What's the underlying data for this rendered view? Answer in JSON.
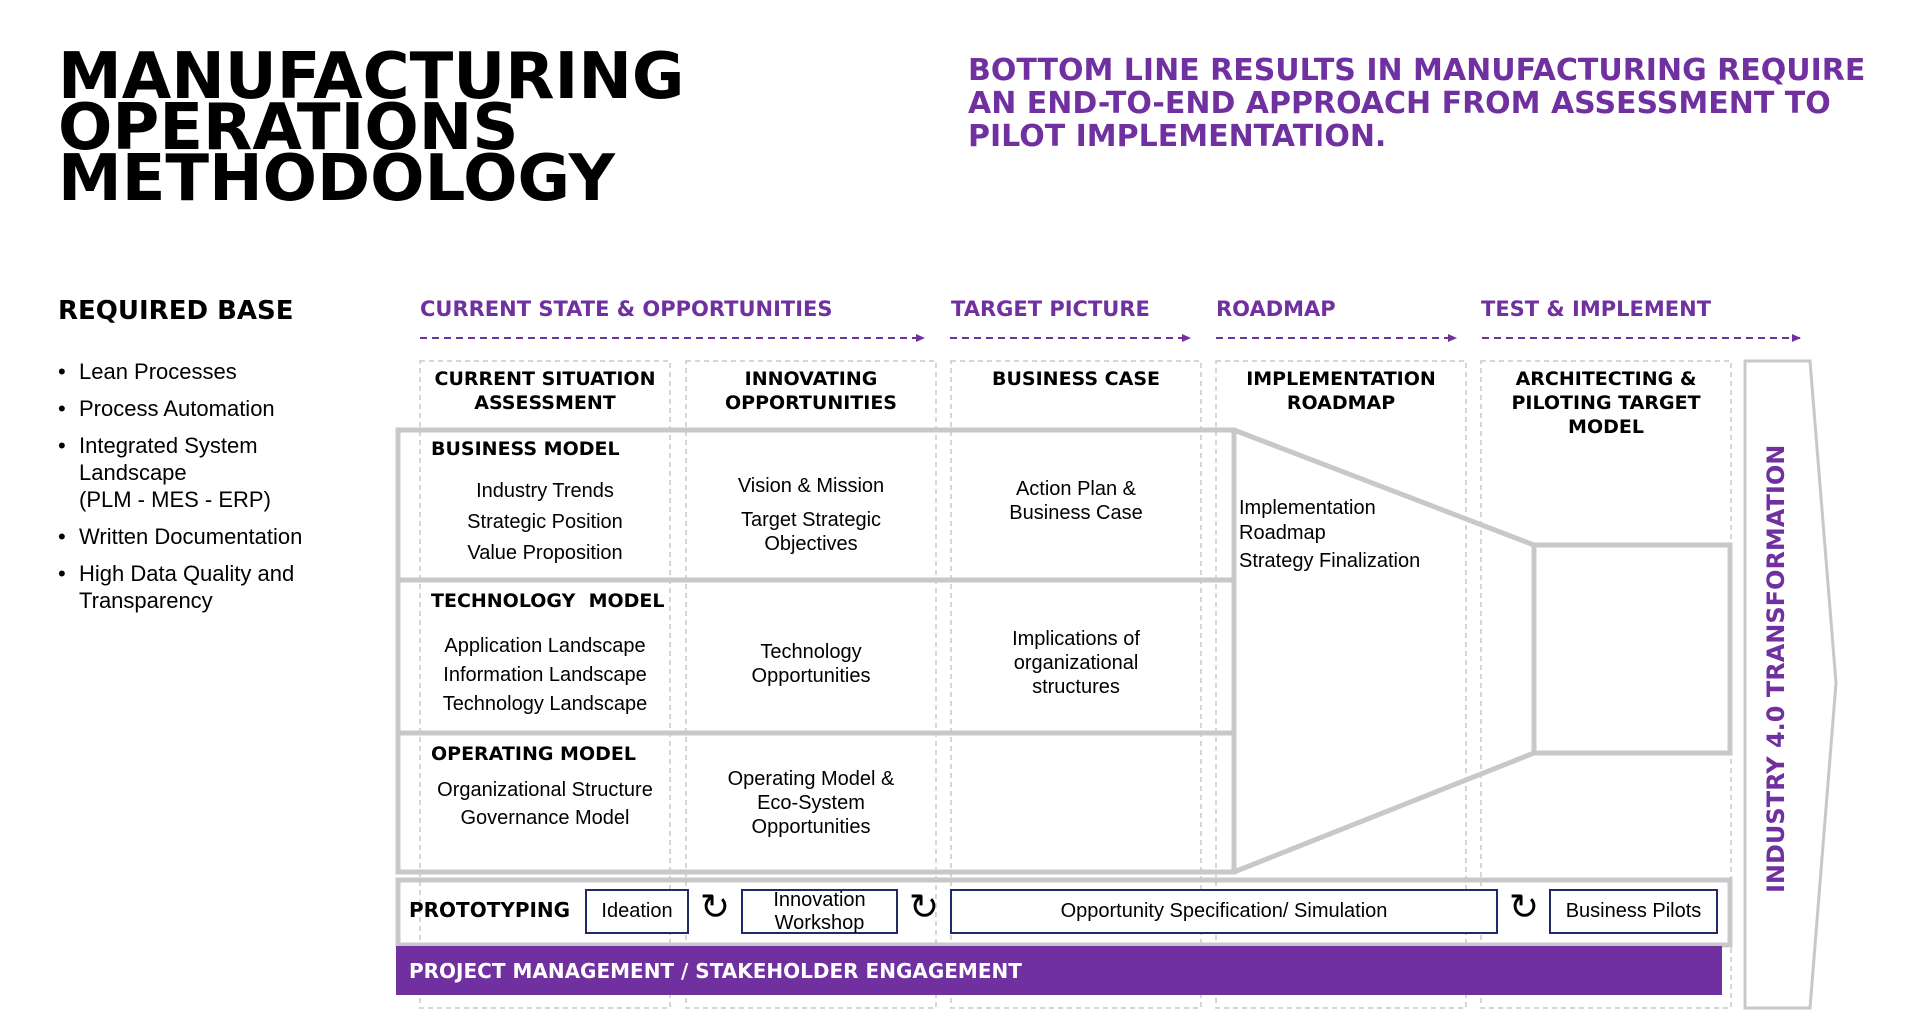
{
  "header": {
    "title_lines": [
      "MANUFACTURING",
      "OPERATIONS",
      "METHODOLOGY"
    ],
    "subtitle_lines": [
      "BOTTOM LINE RESULTS IN MANUFACTURING REQUIRE",
      "AN END-TO-END APPROACH FROM ASSESSMENT TO",
      "PILOT IMPLEMENTATION."
    ]
  },
  "required_base": {
    "title": "REQUIRED BASE",
    "items": [
      {
        "lines": [
          "Lean Processes"
        ]
      },
      {
        "lines": [
          "Process Automation"
        ]
      },
      {
        "lines": [
          "Integrated System",
          "Landscape",
          "(PLM - MES - ERP)"
        ]
      },
      {
        "lines": [
          "Written Documentation"
        ]
      },
      {
        "lines": [
          "High Data Quality and",
          "Transparency"
        ]
      }
    ]
  },
  "phases": [
    "CURRENT STATE & OPPORTUNITIES",
    "TARGET PICTURE",
    "ROADMAP",
    "TEST & IMPLEMENT"
  ],
  "columns": [
    {
      "lines": [
        "CURRENT SITUATION",
        "ASSESSMENT"
      ]
    },
    {
      "lines": [
        "INNOVATING",
        "OPPORTUNITIES"
      ]
    },
    {
      "lines": [
        "BUSINESS CASE"
      ]
    },
    {
      "lines": [
        "IMPLEMENTATION",
        "ROADMAP"
      ]
    },
    {
      "lines": [
        "ARCHITECTING &",
        "PILOTING TARGET",
        "MODEL"
      ]
    }
  ],
  "rows": [
    {
      "label": "BUSINESS MODEL",
      "assessment": [
        "Industry Trends",
        "Strategic Position",
        "Value Proposition"
      ],
      "opportunities": [
        "Vision & Mission",
        "",
        "Target Strategic",
        "Objectives"
      ],
      "business_case": [
        "Action Plan &",
        "Business Case"
      ]
    },
    {
      "label": "TECHNOLOGY  MODEL",
      "assessment": [
        "Application Landscape",
        "Information Landscape",
        "Technology Landscape"
      ],
      "opportunities": [
        "Technology",
        "Opportunities"
      ],
      "business_case": [
        "Implications of",
        "organizational",
        "structures"
      ]
    },
    {
      "label": "OPERATING MODEL",
      "assessment": [
        "Organizational Structure",
        "Governance Model"
      ],
      "opportunities": [
        "Operating Model &",
        "Eco-System",
        "Opportunities"
      ],
      "business_case": []
    }
  ],
  "roadmap_text": [
    "Implementation",
    "Roadmap",
    "Strategy Finalization"
  ],
  "prototyping": {
    "label": "PROTOTYPING",
    "boxes": [
      {
        "lines": [
          "Ideation"
        ]
      },
      {
        "lines": [
          "Innovation",
          "Workshop"
        ]
      },
      {
        "lines": [
          "Opportunity Specification/ Simulation"
        ]
      },
      {
        "lines": [
          "Business Pilots"
        ]
      }
    ]
  },
  "project_management": "PROJECT MANAGEMENT / STAKEHOLDER ENGAGEMENT",
  "side_label": "INDUSTRY 4.0 TRANSFORMATION",
  "colors": {
    "accent": "#7030a0",
    "box_border": "#1f2a6b",
    "frame_gray": "#c8c8c8"
  }
}
